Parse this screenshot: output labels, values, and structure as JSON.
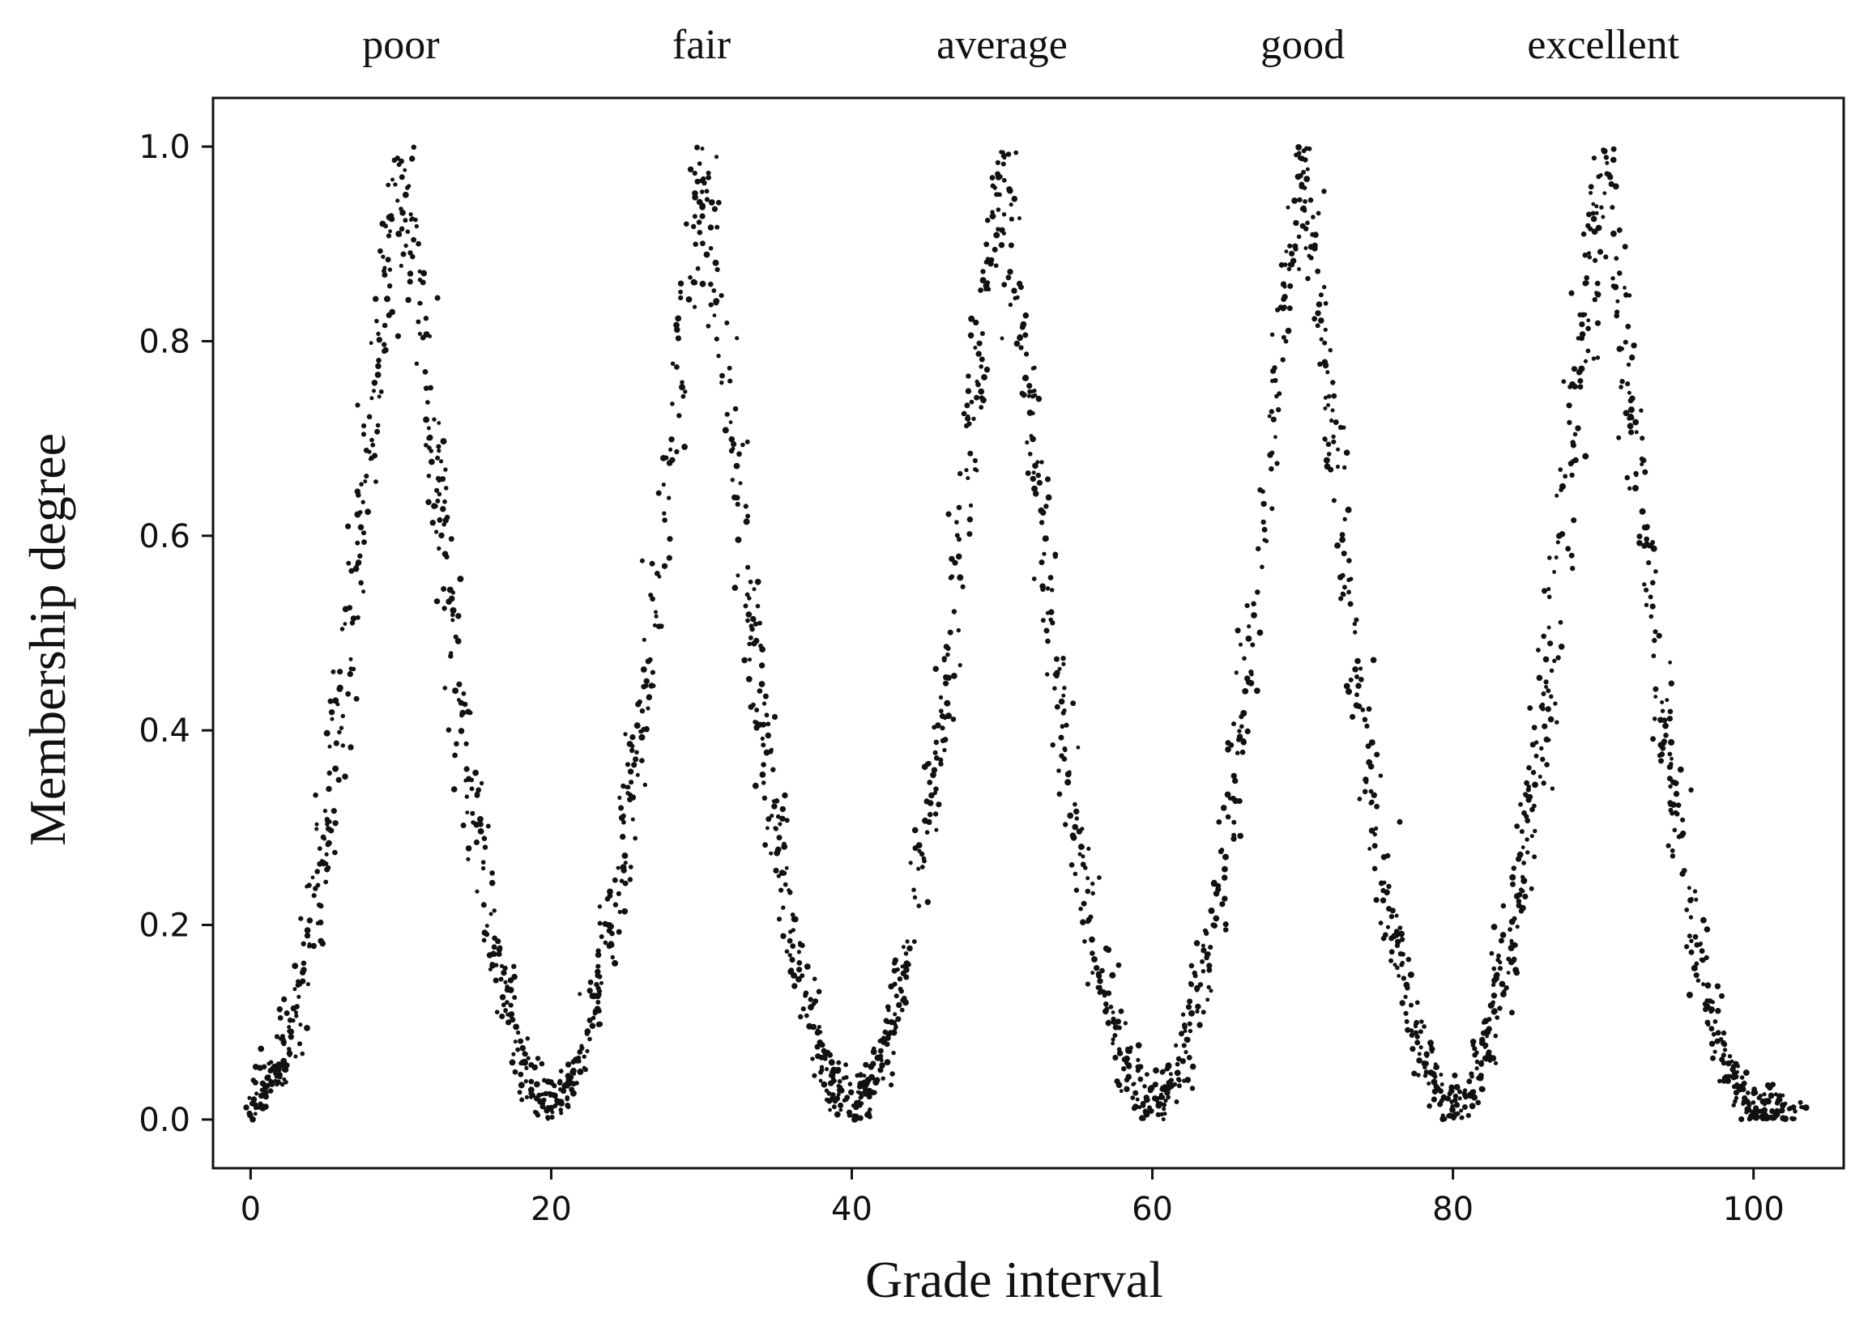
{
  "chart_data": {
    "type": "scatter",
    "title": "",
    "xlabel": "Grade interval",
    "ylabel": "Membership degree",
    "xlim": [
      -2.5,
      106
    ],
    "ylim": [
      -0.05,
      1.05
    ],
    "x_ticks": [
      0,
      20,
      40,
      60,
      80,
      100
    ],
    "y_ticks": [
      0.0,
      0.2,
      0.4,
      0.6,
      0.8,
      1.0
    ],
    "x_tick_labels": [
      "0",
      "20",
      "40",
      "60",
      "80",
      "100"
    ],
    "y_tick_labels": [
      "0.0",
      "0.2",
      "0.4",
      "0.6",
      "0.8",
      "1.0"
    ],
    "grid": false,
    "legend": "none",
    "marker_color": "#111111",
    "categories": [
      {
        "label": "poor",
        "center": 10
      },
      {
        "label": "fair",
        "center": 30
      },
      {
        "label": "average",
        "center": 50
      },
      {
        "label": "good",
        "center": 70
      },
      {
        "label": "excellent",
        "center": 90
      }
    ],
    "curve_points": [
      [
        0.0,
        0.01
      ],
      [
        2.0,
        0.06
      ],
      [
        4.0,
        0.19
      ],
      [
        6.0,
        0.41
      ],
      [
        8.0,
        0.71
      ],
      [
        10.0,
        1.0
      ],
      [
        12.0,
        0.71
      ],
      [
        14.0,
        0.41
      ],
      [
        16.0,
        0.19
      ],
      [
        18.0,
        0.06
      ],
      [
        20.0,
        0.01
      ],
      [
        22.0,
        0.06
      ],
      [
        24.0,
        0.19
      ],
      [
        26.0,
        0.41
      ],
      [
        28.0,
        0.71
      ],
      [
        30.0,
        1.0
      ],
      [
        32.0,
        0.71
      ],
      [
        34.0,
        0.41
      ],
      [
        36.0,
        0.19
      ],
      [
        38.0,
        0.06
      ],
      [
        40.0,
        0.01
      ],
      [
        42.0,
        0.06
      ],
      [
        44.0,
        0.19
      ],
      [
        46.0,
        0.41
      ],
      [
        48.0,
        0.71
      ],
      [
        50.0,
        1.0
      ],
      [
        52.0,
        0.71
      ],
      [
        54.0,
        0.41
      ],
      [
        56.0,
        0.19
      ],
      [
        58.0,
        0.06
      ],
      [
        60.0,
        0.01
      ],
      [
        62.0,
        0.06
      ],
      [
        64.0,
        0.19
      ],
      [
        66.0,
        0.41
      ],
      [
        68.0,
        0.71
      ],
      [
        70.0,
        1.0
      ],
      [
        72.0,
        0.71
      ],
      [
        74.0,
        0.41
      ],
      [
        76.0,
        0.19
      ],
      [
        78.0,
        0.06
      ],
      [
        80.0,
        0.01
      ],
      [
        82.0,
        0.06
      ],
      [
        84.0,
        0.19
      ],
      [
        86.0,
        0.41
      ],
      [
        88.0,
        0.71
      ],
      [
        90.0,
        1.0
      ],
      [
        92.0,
        0.71
      ],
      [
        94.0,
        0.41
      ],
      [
        96.0,
        0.19
      ],
      [
        98.0,
        0.06
      ],
      [
        100.0,
        0.01
      ],
      [
        103.0,
        0.01
      ]
    ]
  }
}
